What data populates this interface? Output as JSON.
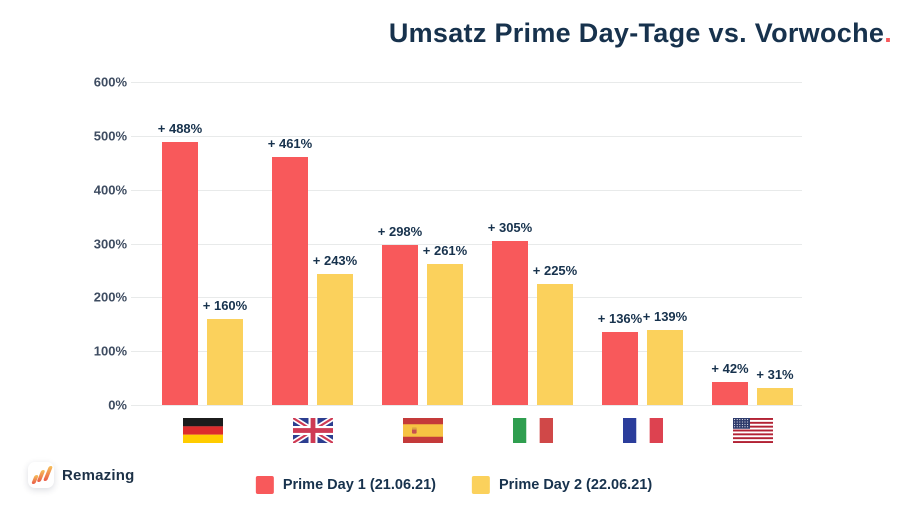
{
  "title": {
    "text": "Umsatz Prime Day-Tage vs. Vorwoche",
    "period": "."
  },
  "logo": {
    "text": "Remazing"
  },
  "colors": {
    "accent_red": "#F8595B",
    "bar_yellow": "#FBD15C",
    "title_navy": "#17324D",
    "axis_label": "#3E4C61",
    "gridline": "#E8EAEA"
  },
  "chart_data": {
    "type": "bar",
    "title": "Umsatz Prime Day-Tage vs. Vorwoche.",
    "categories": [
      {
        "name": "Germany",
        "flag": "germany-flag"
      },
      {
        "name": "United Kingdom",
        "flag": "uk-flag"
      },
      {
        "name": "Spain",
        "flag": "spain-flag"
      },
      {
        "name": "Italy",
        "flag": "italy-flag"
      },
      {
        "name": "France",
        "flag": "france-flag"
      },
      {
        "name": "USA",
        "flag": "usa-flag"
      }
    ],
    "series": [
      {
        "name": "Prime Day 1 (21.06.21)",
        "color": "#F8595B",
        "values": [
          488,
          461,
          298,
          305,
          136,
          42
        ]
      },
      {
        "name": "Prime Day 2 (22.06.21)",
        "color": "#FBD15C",
        "values": [
          160,
          243,
          261,
          225,
          139,
          31
        ]
      }
    ],
    "value_prefix": "+ ",
    "value_suffix": "%",
    "xlabel": "",
    "ylabel": "",
    "ylim": [
      0,
      600
    ],
    "yticks": [
      600,
      500,
      400,
      300,
      200,
      100,
      0
    ],
    "ytick_suffix": "%",
    "grid": true,
    "legend_position": "bottom"
  }
}
